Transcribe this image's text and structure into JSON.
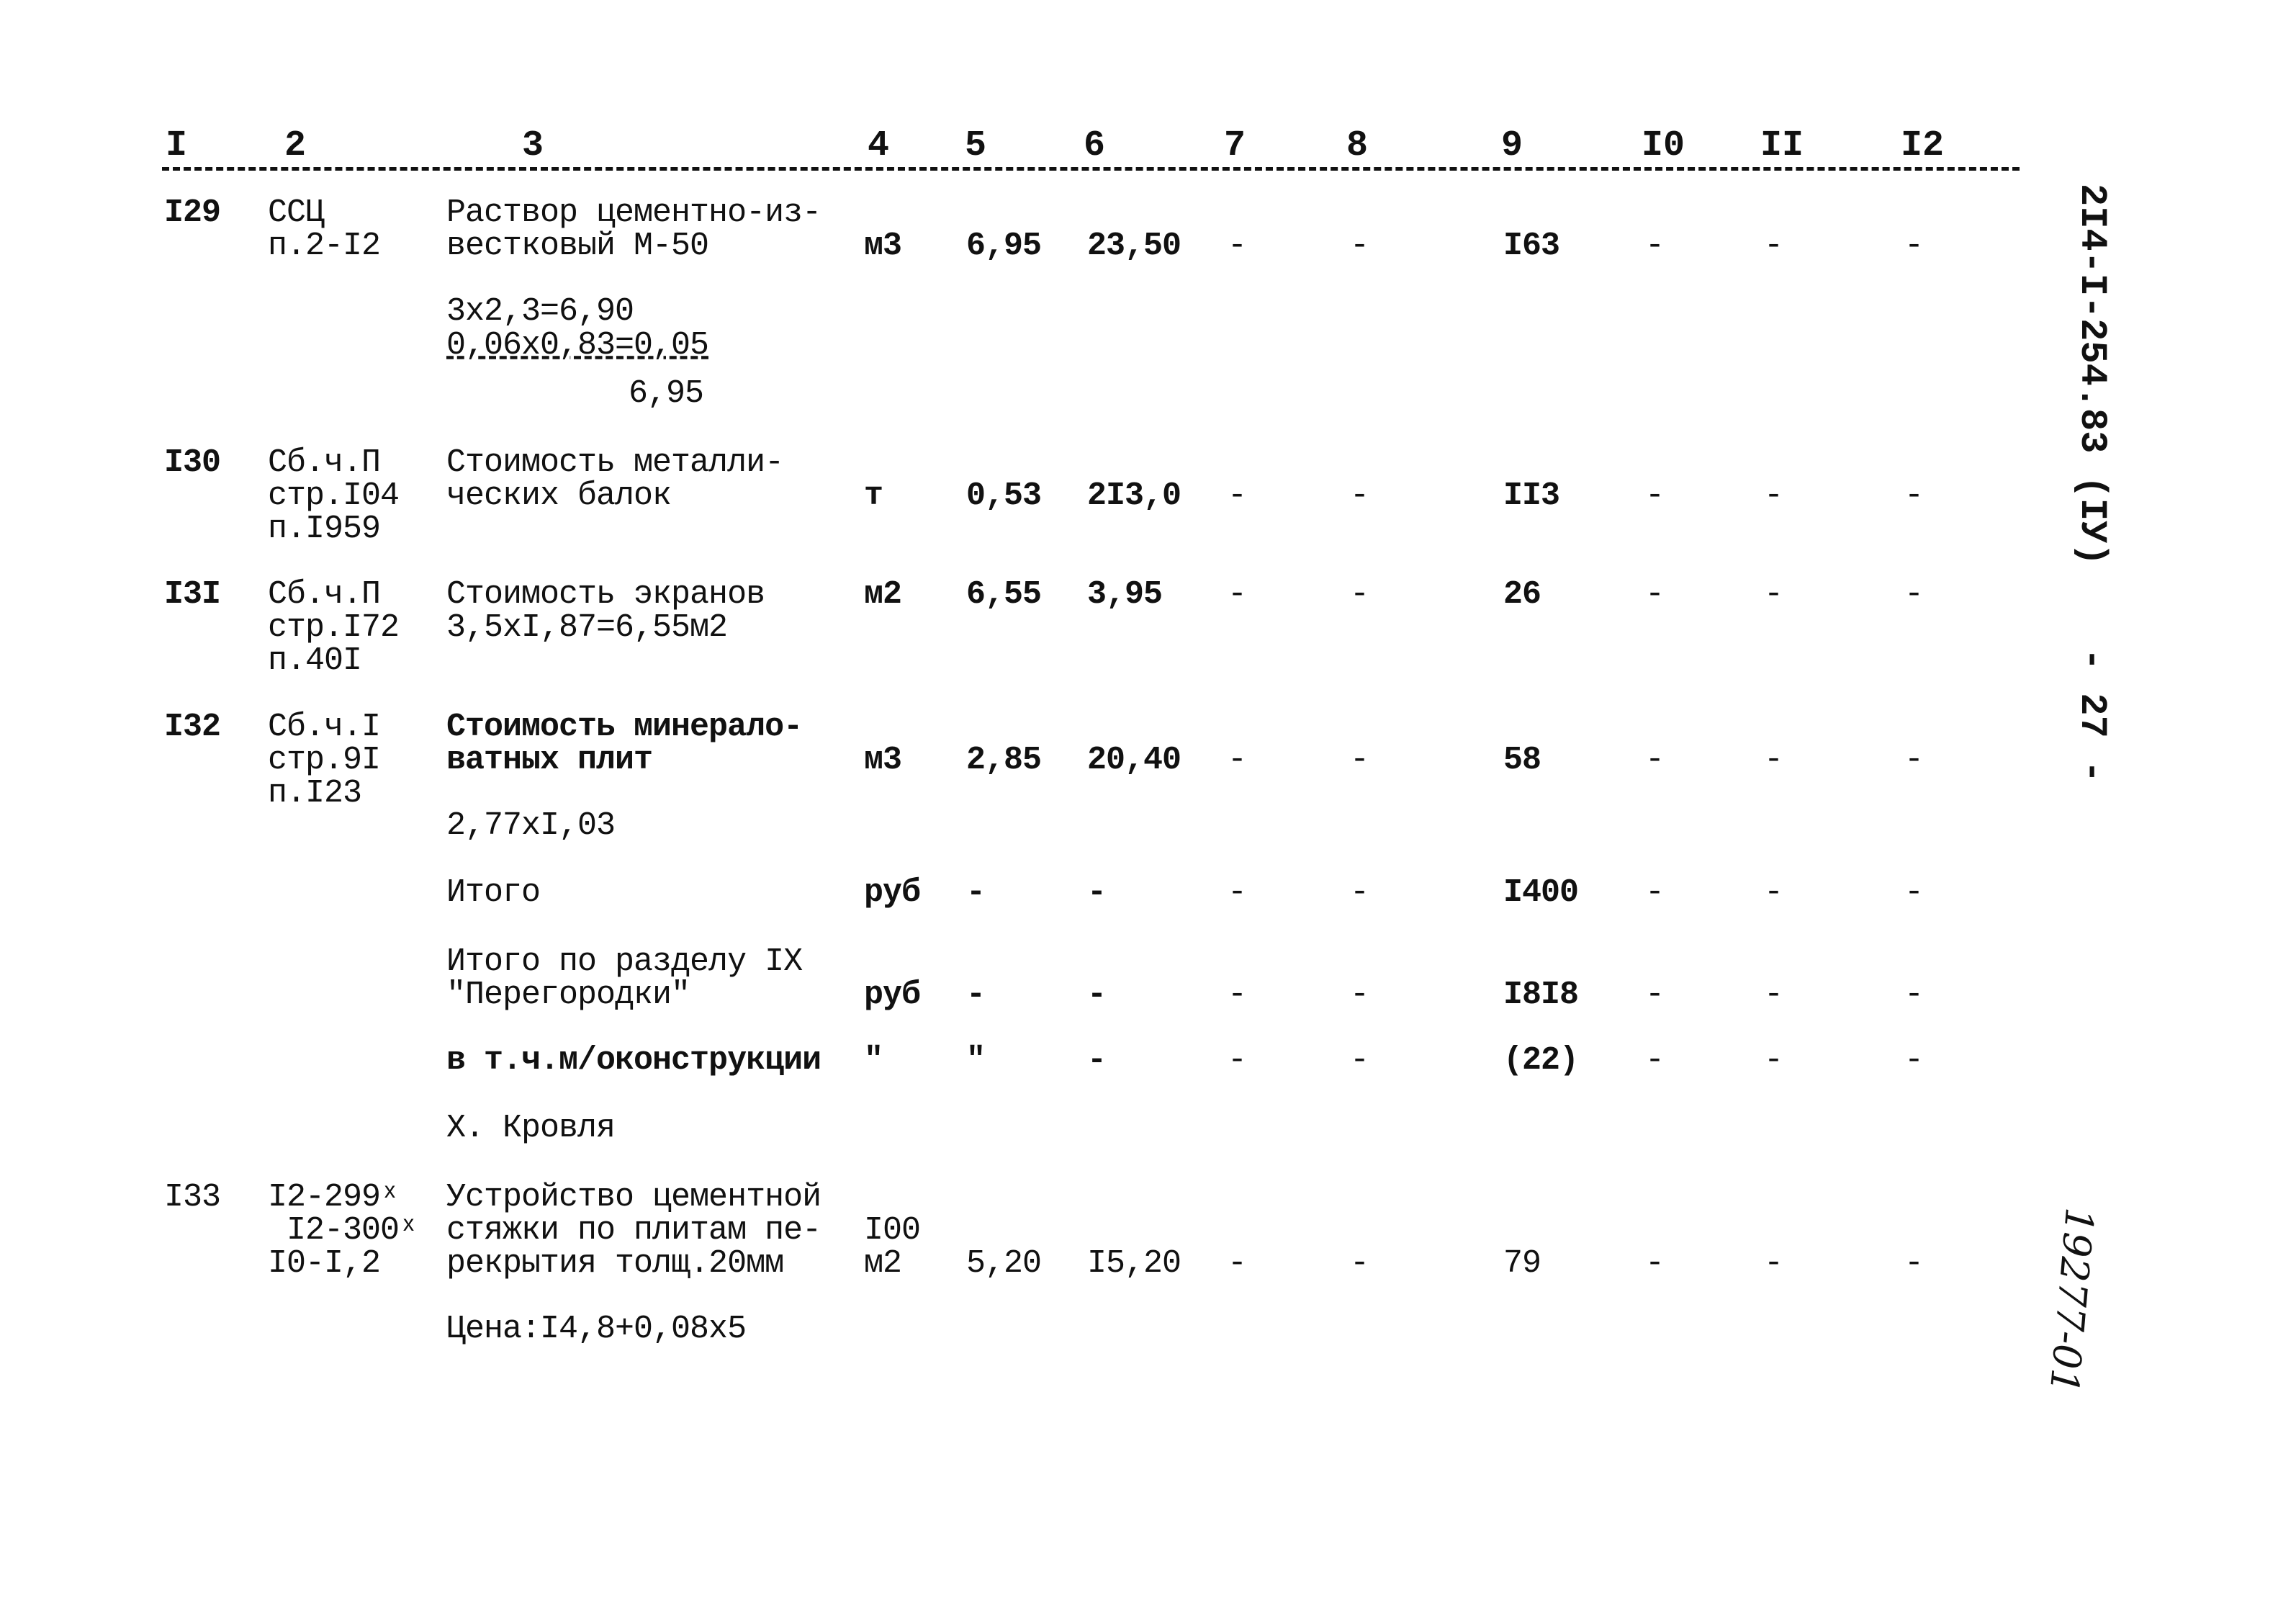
{
  "header": {
    "columns": [
      "I",
      "2",
      "3",
      "4",
      "5",
      "6",
      "7",
      "8",
      "9",
      "I0",
      "II",
      "I2"
    ]
  },
  "rows": [
    {
      "no": "I29",
      "ref": "ССЦ\nп.2-I2",
      "desc": "Раствор цементно-из-\nвестковый М-50",
      "unit": "м3",
      "c5": "6,95",
      "c6": "23,50",
      "c7": "-",
      "c8": "-",
      "c9": "I63",
      "c10": "-",
      "c11": "-",
      "c12": "-",
      "calc": [
        "3x2,3=6,90",
        "0,06x0,83=0,05",
        "6,95"
      ]
    },
    {
      "no": "I30",
      "ref": "Сб.ч.П\nстр.I04\nп.I959",
      "desc": "Стоимость металли-\nческих балок",
      "unit": "т",
      "c5": "0,53",
      "c6": "2I3,0",
      "c7": "-",
      "c8": "-",
      "c9": "II3",
      "c10": "-",
      "c11": "-",
      "c12": "-"
    },
    {
      "no": "I3I",
      "ref": "Сб.ч.П\nстр.I72\nп.40I",
      "desc": "Стоимость экранов\n3,5xI,87=6,55м2",
      "unit": "м2",
      "c5": "6,55",
      "c6": "3,95",
      "c7": "-",
      "c8": "-",
      "c9": "26",
      "c10": "-",
      "c11": "-",
      "c12": "-"
    },
    {
      "no": "I32",
      "ref": "Сб.ч.I\nстр.9I\nп.I23",
      "desc": "Стоимость минерало-\nватных плит",
      "unit": "м3",
      "c5": "2,85",
      "c6": "20,40",
      "c7": "-",
      "c8": "-",
      "c9": "58",
      "c10": "-",
      "c11": "-",
      "c12": "-",
      "calc": [
        "2,77xI,03"
      ]
    },
    {
      "desc": "Итого",
      "unit": "руб",
      "c5": "-",
      "c6": "-",
      "c7": "-",
      "c8": "-",
      "c9": "I400",
      "c10": "-",
      "c11": "-",
      "c12": "-"
    },
    {
      "desc": "Итого по разделу IX\n\"Перегородки\"",
      "unit": "руб",
      "c5": "-",
      "c6": "-",
      "c7": "-",
      "c8": "-",
      "c9": "I8I8",
      "c10": "-",
      "c11": "-",
      "c12": "-"
    },
    {
      "desc": "в т.ч.м/оконструкции",
      "unit": "\"",
      "c5": "\"",
      "c6": "-",
      "c7": "-",
      "c8": "-",
      "c9": "(22)",
      "c10": "-",
      "c11": "-",
      "c12": "-"
    },
    {
      "desc": "Х. Кровля"
    },
    {
      "no": "I33",
      "ref": "I2-299ˣ\n I2-300ˣ\nI0-I,2",
      "desc": "Устройство цементной\nстяжки по плитам пе-\nрекрытия толщ.20мм",
      "unit": "I00\nм2",
      "c5": "5,20",
      "c6": "I5,20",
      "c7": "-",
      "c8": "-",
      "c9": "79",
      "c10": "-",
      "c11": "-",
      "c12": "-",
      "calc": [
        "Цена:I4,8+0,08x5"
      ]
    }
  ],
  "side": {
    "doc_code": "2I4-I-254.83 (IУ)",
    "page": "- 27 -",
    "handwritten": "19277-01"
  }
}
